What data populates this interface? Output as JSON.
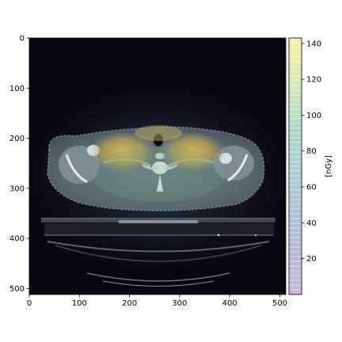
{
  "chart_data": {
    "type": "heatmap",
    "title": "",
    "xlabel": "",
    "ylabel": "",
    "xlim": [
      0,
      512
    ],
    "ylim": [
      512,
      0
    ],
    "x_ticks": [
      "0",
      "100",
      "200",
      "300",
      "400",
      "500"
    ],
    "y_ticks": [
      "0",
      "100",
      "200",
      "300",
      "400",
      "500"
    ],
    "image": "axial CT slice with dose overlay",
    "colorbar": {
      "label": "[nGy]",
      "range": [
        0,
        143
      ],
      "ticks": [
        "20",
        "40",
        "60",
        "80",
        "100",
        "120",
        "140"
      ],
      "colormap": "viridis",
      "alpha": 0.35
    },
    "colors": {
      "background": "#0a0713",
      "dose_high": "#f4ea7a",
      "dose_mid": "#4fa3a0",
      "dose_low": "#6f4f87"
    }
  }
}
